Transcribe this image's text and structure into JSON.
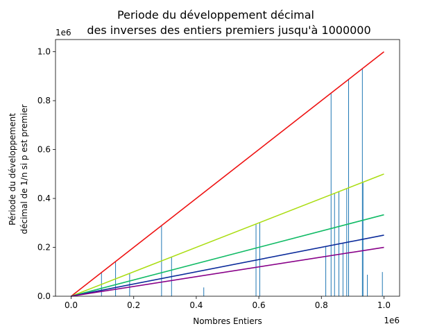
{
  "chart_data": {
    "type": "line",
    "title_lines": [
      "Periode du développement décimal",
      "des inverses des entiers premiers jusqu'à 1000000"
    ],
    "xlabel": "Nombres Entiers",
    "ylabel_lines": [
      "Période du développement",
      "décimal de 1/n si p est premier"
    ],
    "x_offset_label": "1e6",
    "y_offset_label": "1e6",
    "xlim": [
      -50000,
      1050000
    ],
    "ylim": [
      0,
      1050000
    ],
    "x_ticks": [
      0,
      200000,
      400000,
      600000,
      800000,
      1000000
    ],
    "x_tick_labels": [
      "0.0",
      "0.2",
      "0.4",
      "0.6",
      "0.8",
      "1.0"
    ],
    "y_ticks": [
      0,
      200000,
      400000,
      600000,
      800000,
      1000000
    ],
    "y_tick_labels": [
      "0.0",
      "0.2",
      "0.4",
      "0.6",
      "0.8",
      "1.0"
    ],
    "grid": false,
    "series": [
      {
        "color": "#ee1111",
        "x": [
          0,
          1000000
        ],
        "y": [
          0,
          1000000
        ]
      },
      {
        "color": "#aadd11",
        "x": [
          0,
          1000000
        ],
        "y": [
          0,
          500000
        ]
      },
      {
        "color": "#11bb66",
        "x": [
          0,
          1000000
        ],
        "y": [
          0,
          333333
        ]
      },
      {
        "color": "#0a2a9a",
        "x": [
          0,
          1000000
        ],
        "y": [
          0,
          250000
        ]
      },
      {
        "color": "#880088",
        "x": [
          0,
          1000000
        ],
        "y": [
          0,
          200000
        ]
      }
    ],
    "stems": {
      "color": "#1f77b4",
      "x": [
        97000,
        142000,
        187000,
        289000,
        321000,
        424000,
        591000,
        603000,
        814000,
        831000,
        842000,
        856000,
        869000,
        881000,
        887000,
        931000,
        933000,
        947000,
        995000
      ],
      "y": [
        97000,
        142000,
        93000,
        289000,
        160000,
        36000,
        295000,
        301000,
        204000,
        831000,
        421000,
        428000,
        217000,
        440000,
        887000,
        931000,
        466000,
        88000,
        99000
      ]
    }
  }
}
